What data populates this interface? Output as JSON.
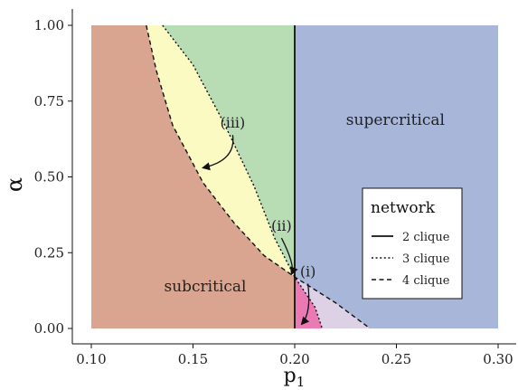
{
  "chart_data": {
    "type": "area",
    "xlabel": "p",
    "xlabel_subscript": "1",
    "ylabel": "α",
    "xlim": [
      0.1,
      0.3
    ],
    "ylim": [
      0.0,
      1.0
    ],
    "x_ticks": [
      0.1,
      0.15,
      0.2,
      0.25,
      0.3
    ],
    "x_tick_labels": [
      "0.10",
      "0.15",
      "0.20",
      "0.25",
      "0.30"
    ],
    "y_ticks": [
      0.0,
      0.25,
      0.5,
      0.75,
      1.0
    ],
    "y_tick_labels": [
      "0.00",
      "0.25",
      "0.50",
      "0.75",
      "1.00"
    ],
    "grid": false,
    "colors": {
      "subcritical": "#d9a590",
      "supercritical": "#a8b7d9",
      "region_green": "#b8dcb3",
      "region_iii": "#fafac2",
      "region_i": "#e97ab3",
      "region_lavender": "#ddd1e6"
    },
    "boundaries": [
      {
        "name": "2 clique",
        "style": "solid",
        "points": [
          [
            0.2,
            0.0
          ],
          [
            0.2,
            1.0
          ]
        ]
      },
      {
        "name": "3 clique",
        "style": "dotted",
        "points": [
          [
            0.135,
            1.0
          ],
          [
            0.15,
            0.87
          ],
          [
            0.165,
            0.68
          ],
          [
            0.18,
            0.47
          ],
          [
            0.19,
            0.3
          ],
          [
            0.2,
            0.17
          ],
          [
            0.21,
            0.07
          ],
          [
            0.2135,
            0.0
          ]
        ]
      },
      {
        "name": "4 clique",
        "style": "dashed",
        "points": [
          [
            0.127,
            1.0
          ],
          [
            0.132,
            0.85
          ],
          [
            0.14,
            0.67
          ],
          [
            0.155,
            0.48
          ],
          [
            0.17,
            0.35
          ],
          [
            0.185,
            0.24
          ],
          [
            0.2,
            0.17
          ],
          [
            0.22,
            0.085
          ],
          [
            0.237,
            0.0
          ]
        ]
      }
    ],
    "region_labels": [
      {
        "text": "subcritical",
        "x": 0.156,
        "y": 0.14
      },
      {
        "text": "supercritical",
        "x": 0.2495,
        "y": 0.69
      }
    ],
    "annotations": [
      {
        "text": "(iii)",
        "x": 0.1695,
        "y": 0.68,
        "arrow_to": [
          0.155,
          0.53
        ]
      },
      {
        "text": "(ii)",
        "x": 0.1935,
        "y": 0.34,
        "arrow_to": [
          0.1985,
          0.18
        ]
      },
      {
        "text": "(i)",
        "x": 0.2065,
        "y": 0.19,
        "arrow_to": [
          0.2035,
          0.015
        ]
      }
    ],
    "legend": {
      "title": "network",
      "position": "right",
      "entries": [
        {
          "label": "2 clique",
          "style": "solid"
        },
        {
          "label": "3 clique",
          "style": "dotted"
        },
        {
          "label": "4 clique",
          "style": "dashed"
        }
      ]
    }
  }
}
